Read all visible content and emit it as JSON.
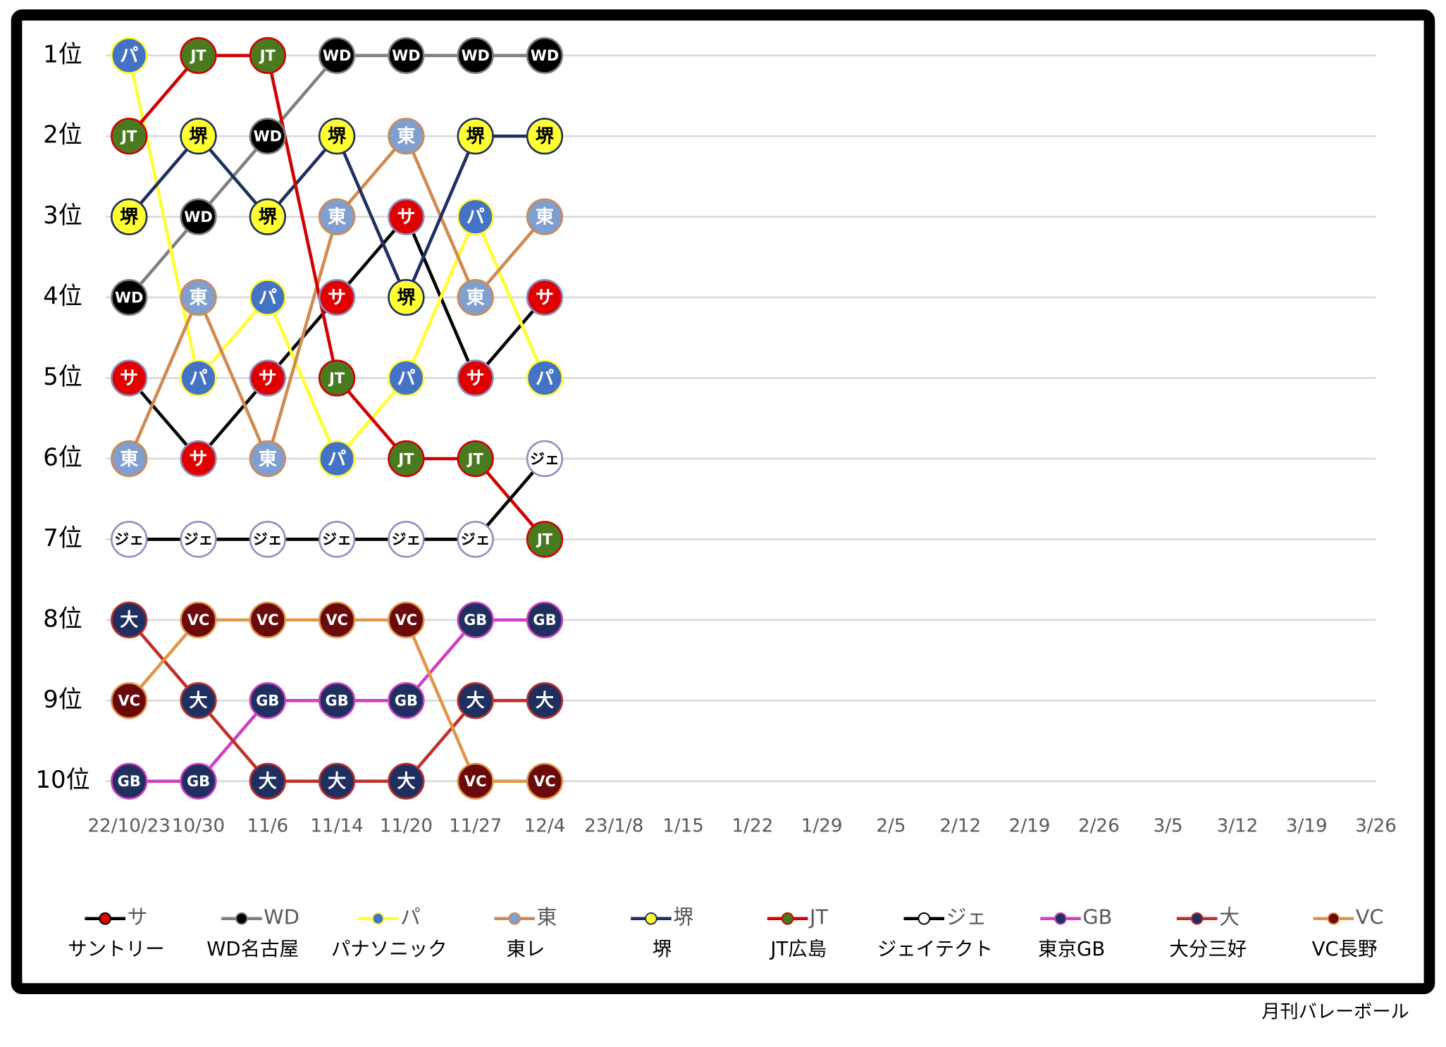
{
  "chart_data": {
    "type": "bump",
    "categories": [
      "22/10/23",
      "10/30",
      "11/6",
      "11/14",
      "11/20",
      "11/27",
      "12/4",
      "23/1/8",
      "1/15",
      "1/22",
      "1/29",
      "2/5",
      "2/12",
      "2/19",
      "2/26",
      "3/5",
      "3/12",
      "3/19",
      "3/26"
    ],
    "ylim": [
      1,
      10
    ],
    "y_reversed": true,
    "grid": true,
    "yticks": [
      {
        "value": 1,
        "label": "1位"
      },
      {
        "value": 2,
        "label": "2位"
      },
      {
        "value": 3,
        "label": "3位"
      },
      {
        "value": 4,
        "label": "4位"
      },
      {
        "value": 5,
        "label": "5位"
      },
      {
        "value": 6,
        "label": "6位"
      },
      {
        "value": 7,
        "label": "7位"
      },
      {
        "value": 8,
        "label": "8位"
      },
      {
        "value": 9,
        "label": "9位"
      },
      {
        "value": 10,
        "label": "10位"
      }
    ],
    "series": [
      {
        "name": "サントリー",
        "short": "サ",
        "color": "#000000",
        "marker_color": "#e00000",
        "text_color": "#ffffff",
        "values": [
          5,
          6,
          5,
          4,
          3,
          5,
          4,
          null,
          null,
          null,
          null,
          null,
          null,
          null,
          null,
          null,
          null,
          null,
          null
        ]
      },
      {
        "name": "WD名古屋",
        "short": "WD",
        "color": "#808080",
        "marker_color": "#000000",
        "text_color": "#ffffff",
        "values": [
          4,
          3,
          2,
          1,
          1,
          1,
          1,
          null,
          null,
          null,
          null,
          null,
          null,
          null,
          null,
          null,
          null,
          null,
          null
        ]
      },
      {
        "name": "パナソニック",
        "short": "パ",
        "color": "#ffff33",
        "marker_color": "#4472c4",
        "text_color": "#ffffff",
        "values": [
          1,
          5,
          4,
          6,
          5,
          3,
          5,
          null,
          null,
          null,
          null,
          null,
          null,
          null,
          null,
          null,
          null,
          null,
          null
        ]
      },
      {
        "name": "東レ",
        "short": "東",
        "color": "#d08a50",
        "marker_color": "#7f9fd0",
        "text_color": "#ffffff",
        "values": [
          6,
          4,
          6,
          3,
          2,
          4,
          3,
          null,
          null,
          null,
          null,
          null,
          null,
          null,
          null,
          null,
          null,
          null,
          null
        ]
      },
      {
        "name": "堺",
        "short": "堺",
        "color": "#1f2f5f",
        "marker_color": "#ffff33",
        "text_color": "#000000",
        "values": [
          3,
          2,
          3,
          2,
          4,
          2,
          2,
          null,
          null,
          null,
          null,
          null,
          null,
          null,
          null,
          null,
          null,
          null,
          null
        ]
      },
      {
        "name": "JT広島",
        "short": "JT",
        "color": "#d00000",
        "marker_color": "#4a7a20",
        "text_color": "#ffffff",
        "values": [
          2,
          1,
          1,
          5,
          6,
          6,
          7,
          null,
          null,
          null,
          null,
          null,
          null,
          null,
          null,
          null,
          null,
          null,
          null
        ]
      },
      {
        "name": "ジェイテクト",
        "short": "ジェ",
        "color": "#000000",
        "marker_color": "#ffffff",
        "text_color": "#000000",
        "values": [
          7,
          7,
          7,
          7,
          7,
          7,
          6,
          null,
          null,
          null,
          null,
          null,
          null,
          null,
          null,
          null,
          null,
          null,
          null
        ]
      },
      {
        "name": "東京GB",
        "short": "GB",
        "color": "#d040c0",
        "marker_color": "#1f2f5f",
        "text_color": "#ffffff",
        "values": [
          10,
          10,
          9,
          9,
          9,
          8,
          8,
          null,
          null,
          null,
          null,
          null,
          null,
          null,
          null,
          null,
          null,
          null,
          null
        ]
      },
      {
        "name": "大分三好",
        "short": "大",
        "color": "#c0302a",
        "marker_color": "#1f2f5f",
        "text_color": "#ffffff",
        "values": [
          8,
          9,
          10,
          10,
          10,
          9,
          9,
          null,
          null,
          null,
          null,
          null,
          null,
          null,
          null,
          null,
          null,
          null,
          null
        ]
      },
      {
        "name": "VC長野",
        "short": "VC",
        "color": "#e0964a",
        "marker_color": "#6b0a0a",
        "text_color": "#ffffff",
        "values": [
          9,
          8,
          8,
          8,
          8,
          10,
          10,
          null,
          null,
          null,
          null,
          null,
          null,
          null,
          null,
          null,
          null,
          null,
          null
        ]
      }
    ],
    "source": "月刊バレーボール"
  }
}
